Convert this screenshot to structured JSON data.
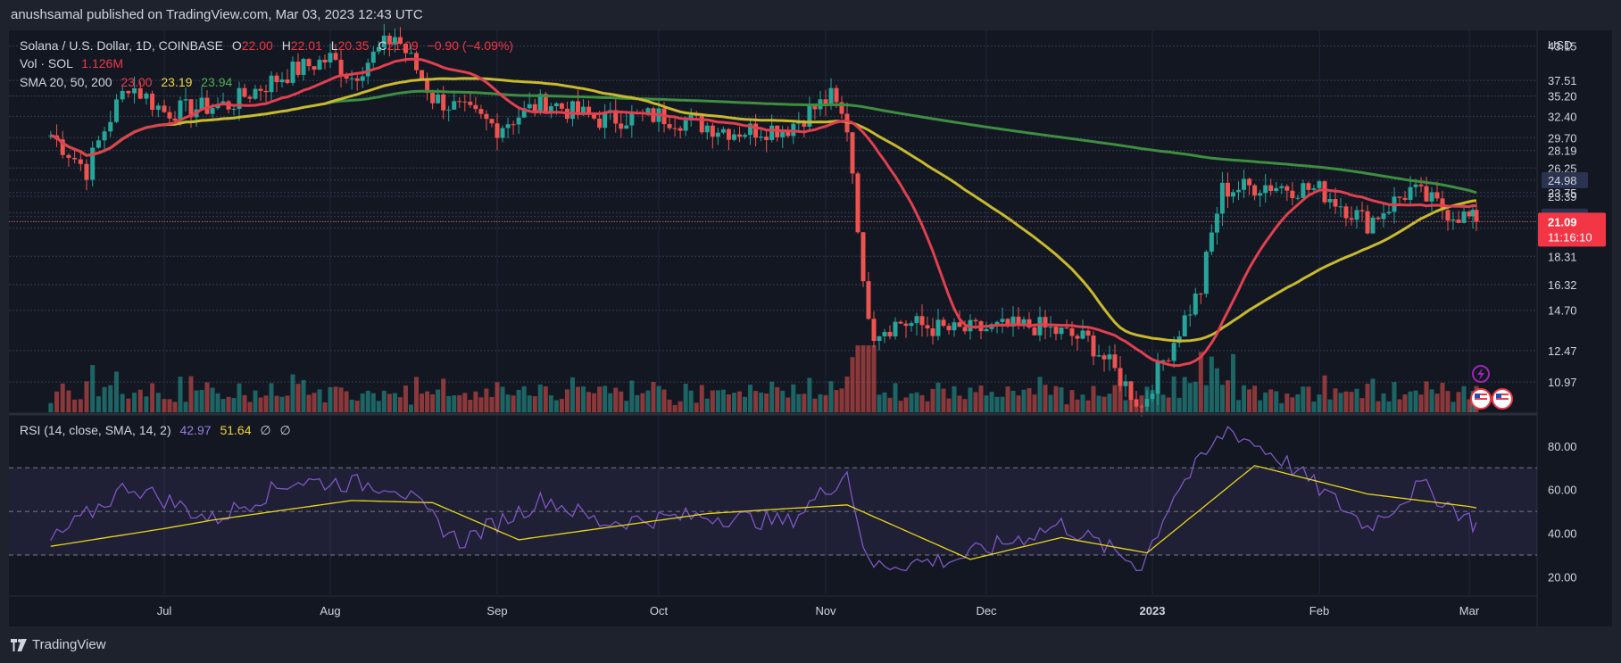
{
  "publisher": "anushsamal published on TradingView.com, Mar 03, 2023 12:43 UTC",
  "footer": {
    "brand": "TradingView"
  },
  "legend": {
    "symbol": "Solana / U.S. Dollar, 1D, COINBASE",
    "o_label": "O",
    "o": "22.00",
    "h_label": "H",
    "h": "22.01",
    "l_label": "L",
    "l": "20.35",
    "c_label": "C",
    "c": "21.09",
    "change": "−0.90 (−4.09%)",
    "vol_label": "Vol · SOL",
    "vol": "1.126M",
    "sma_label": "SMA 20, 50, 200",
    "sma20": "23.00",
    "sma50": "23.19",
    "sma200": "23.94",
    "rsi_label": "RSI (14, close, SMA, 14, 2)",
    "rsi": "42.97",
    "rsi_sma": "51.64",
    "empty1": "∅",
    "empty2": "∅"
  },
  "colors": {
    "background": "#131722",
    "up": "#26a69a",
    "down": "#ef5350",
    "sma20": "#e0404f",
    "sma50": "#c8b92d",
    "sma200": "#3e8e41",
    "rsi": "#7e57c2",
    "rsi_sma": "#e8d61c"
  },
  "chart_data": [
    {
      "type": "candlestick",
      "title": "Solana / U.S. Dollar, 1D, COINBASE",
      "currency": "USD",
      "y_scale": "log",
      "y_ticks": [
        "43.15",
        "37.51",
        "35.20",
        "32.40",
        "29.70",
        "28.19",
        "26.25",
        "24.98",
        "23.75",
        "23.39",
        "21.88",
        "21.53",
        "21.09",
        "20.55",
        "18.31",
        "16.32",
        "14.70",
        "12.47",
        "10.97"
      ],
      "highlighted_ticks": [
        "24.98",
        "21.53",
        "20.55"
      ],
      "last_price": "21.09",
      "countdown": "11:16:10",
      "x_ticks": [
        "Jul",
        "Aug",
        "Sep",
        "Oct",
        "Nov",
        "Dec",
        "2023",
        "Feb",
        "Mar"
      ],
      "ohlc_approx": [
        {
          "date": "2022-06-12",
          "close": 30.0
        },
        {
          "date": "2022-06-18",
          "close": 26.0
        },
        {
          "date": "2022-06-25",
          "close": 37.0
        },
        {
          "date": "2022-07-01",
          "close": 33.0
        },
        {
          "date": "2022-07-13",
          "close": 34.0
        },
        {
          "date": "2022-07-25",
          "close": 39.0
        },
        {
          "date": "2022-08-01",
          "close": 41.0
        },
        {
          "date": "2022-08-05",
          "close": 38.0
        },
        {
          "date": "2022-08-13",
          "close": 45.0
        },
        {
          "date": "2022-08-20",
          "close": 35.0
        },
        {
          "date": "2022-09-01",
          "close": 31.0
        },
        {
          "date": "2022-09-10",
          "close": 34.5
        },
        {
          "date": "2022-09-15",
          "close": 33.0
        },
        {
          "date": "2022-09-20",
          "close": 32.0
        },
        {
          "date": "2022-10-01",
          "close": 32.5
        },
        {
          "date": "2022-10-15",
          "close": 30.5
        },
        {
          "date": "2022-10-25",
          "close": 31.0
        },
        {
          "date": "2022-11-02",
          "close": 35.0
        },
        {
          "date": "2022-11-05",
          "close": 31.0
        },
        {
          "date": "2022-11-08",
          "close": 16.0
        },
        {
          "date": "2022-11-10",
          "close": 13.5
        },
        {
          "date": "2022-11-15",
          "close": 14.0
        },
        {
          "date": "2022-11-25",
          "close": 13.5
        },
        {
          "date": "2022-12-10",
          "close": 13.8
        },
        {
          "date": "2022-12-20",
          "close": 13.0
        },
        {
          "date": "2022-12-30",
          "close": 9.9
        },
        {
          "date": "2023-01-05",
          "close": 13.0
        },
        {
          "date": "2023-01-10",
          "close": 16.0
        },
        {
          "date": "2023-01-14",
          "close": 24.0
        },
        {
          "date": "2023-01-22",
          "close": 24.5
        },
        {
          "date": "2023-02-01",
          "close": 24.0
        },
        {
          "date": "2023-02-10",
          "close": 21.0
        },
        {
          "date": "2023-02-18",
          "close": 24.0
        },
        {
          "date": "2023-02-25",
          "close": 22.0
        },
        {
          "date": "2023-03-03",
          "close": 21.09
        }
      ]
    },
    {
      "type": "line",
      "title": "RSI (14, close, SMA, 14, 2)",
      "y_ticks": [
        "80.00",
        "60.00",
        "40.00",
        "20.00"
      ],
      "band": [
        30,
        70
      ],
      "midline": 50,
      "series": [
        {
          "name": "RSI",
          "points": [
            {
              "date": "2022-06-12",
              "v": 36
            },
            {
              "date": "2022-06-25",
              "v": 62
            },
            {
              "date": "2022-07-10",
              "v": 46
            },
            {
              "date": "2022-07-25",
              "v": 64
            },
            {
              "date": "2022-08-13",
              "v": 62
            },
            {
              "date": "2022-08-25",
              "v": 36
            },
            {
              "date": "2022-09-10",
              "v": 56
            },
            {
              "date": "2022-09-20",
              "v": 45
            },
            {
              "date": "2022-10-10",
              "v": 48
            },
            {
              "date": "2022-10-25",
              "v": 45
            },
            {
              "date": "2022-11-05",
              "v": 68
            },
            {
              "date": "2022-11-09",
              "v": 25
            },
            {
              "date": "2022-11-25",
              "v": 28
            },
            {
              "date": "2022-12-15",
              "v": 44
            },
            {
              "date": "2022-12-30",
              "v": 25
            },
            {
              "date": "2023-01-05",
              "v": 58
            },
            {
              "date": "2023-01-15",
              "v": 88
            },
            {
              "date": "2023-01-25",
              "v": 74
            },
            {
              "date": "2023-02-10",
              "v": 43
            },
            {
              "date": "2023-02-20",
              "v": 62
            },
            {
              "date": "2023-03-03",
              "v": 42.97
            }
          ]
        },
        {
          "name": "SMA",
          "points": [
            {
              "date": "2022-06-12",
              "v": 34
            },
            {
              "date": "2022-07-10",
              "v": 46
            },
            {
              "date": "2022-08-05",
              "v": 55
            },
            {
              "date": "2022-08-20",
              "v": 54
            },
            {
              "date": "2022-09-05",
              "v": 37
            },
            {
              "date": "2022-10-10",
              "v": 49
            },
            {
              "date": "2022-11-05",
              "v": 53
            },
            {
              "date": "2022-11-28",
              "v": 28
            },
            {
              "date": "2022-12-15",
              "v": 38
            },
            {
              "date": "2022-12-31",
              "v": 31
            },
            {
              "date": "2023-01-20",
              "v": 71
            },
            {
              "date": "2023-02-10",
              "v": 58
            },
            {
              "date": "2023-03-03",
              "v": 51.64
            }
          ]
        }
      ]
    }
  ]
}
